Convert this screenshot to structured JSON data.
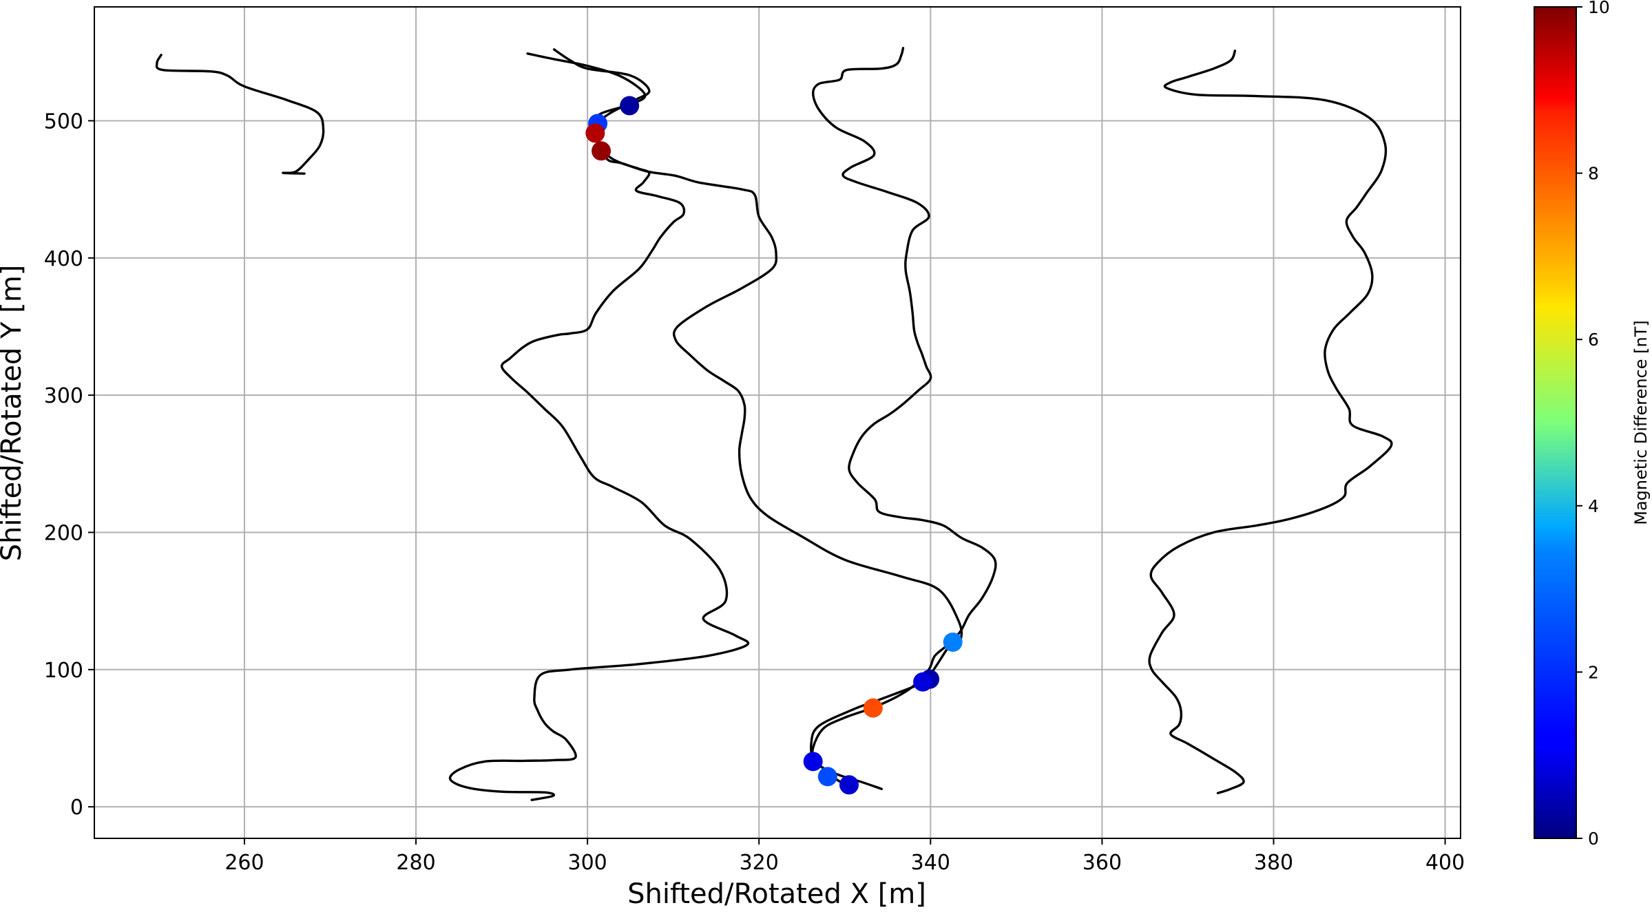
{
  "chart_data": {
    "type": "scatter",
    "title": "",
    "xlabel": "Shifted/Rotated X [m]",
    "ylabel": "Shifted/Rotated Y [m]",
    "xlim": [
      242.5,
      401.8
    ],
    "ylim": [
      -23,
      583
    ],
    "grid": true,
    "x_ticks": [
      260,
      280,
      300,
      320,
      340,
      360,
      380,
      400
    ],
    "y_ticks": [
      0,
      100,
      200,
      300,
      400,
      500
    ],
    "colorbar": {
      "label": "Magnetic Difference [nT]",
      "colormap": "jet",
      "min": 0,
      "max": 10,
      "ticks": [
        0,
        2,
        4,
        6,
        8,
        10
      ]
    },
    "tracks": [
      [
        [
          250.3,
          548
        ],
        [
          249.8,
          542
        ],
        [
          250.5,
          537
        ],
        [
          256,
          536
        ],
        [
          258,
          533
        ],
        [
          260,
          525
        ],
        [
          265,
          515
        ],
        [
          268.5,
          506
        ],
        [
          269.2,
          494
        ],
        [
          268.8,
          482
        ],
        [
          267.5,
          472
        ],
        [
          266,
          463
        ],
        [
          264.5,
          462
        ],
        [
          267,
          461.5
        ]
      ],
      [
        [
          296.1,
          552
        ],
        [
          298,
          544
        ],
        [
          300,
          538
        ],
        [
          305,
          533
        ],
        [
          307.2,
          522
        ],
        [
          305.5,
          515
        ],
        [
          302.5,
          505
        ],
        [
          301.2,
          498
        ],
        [
          300.9,
          492
        ],
        [
          301.2,
          484
        ],
        [
          301.8,
          477
        ],
        [
          302.5,
          471
        ],
        [
          304,
          469
        ],
        [
          307,
          463
        ],
        [
          310.2,
          460
        ],
        [
          313,
          455
        ],
        [
          318,
          450
        ],
        [
          319.5,
          446
        ],
        [
          320,
          430
        ],
        [
          321.5,
          415
        ],
        [
          322,
          403
        ],
        [
          321.5,
          392
        ],
        [
          318,
          378
        ],
        [
          314,
          365
        ],
        [
          310.5,
          350
        ],
        [
          310.3,
          340
        ],
        [
          312,
          329
        ],
        [
          314,
          318
        ],
        [
          316,
          310
        ],
        [
          317.6,
          303
        ],
        [
          318.3,
          293
        ],
        [
          318.3,
          283
        ],
        [
          318,
          272
        ],
        [
          317.7,
          259
        ],
        [
          318,
          242
        ],
        [
          319,
          225
        ],
        [
          321,
          212
        ],
        [
          325,
          197
        ],
        [
          330,
          180
        ],
        [
          336.5,
          168
        ],
        [
          341,
          158
        ],
        [
          343.3,
          135
        ],
        [
          343.5,
          122
        ],
        [
          342.3,
          118
        ],
        [
          340.8,
          104
        ],
        [
          339.7,
          94
        ],
        [
          339,
          90
        ],
        [
          334,
          78
        ],
        [
          331,
          71
        ],
        [
          327,
          59
        ],
        [
          326.1,
          47
        ],
        [
          326.5,
          33
        ],
        [
          329,
          24
        ],
        [
          332,
          18
        ],
        [
          334.3,
          13
        ]
      ],
      [
        [
          293,
          549
        ],
        [
          296,
          545
        ],
        [
          300,
          540
        ],
        [
          304,
          532
        ],
        [
          306.7,
          519
        ],
        [
          305,
          512
        ],
        [
          301.5,
          505
        ],
        [
          301,
          497
        ],
        [
          301.5,
          482
        ],
        [
          302.5,
          474
        ],
        [
          304,
          469
        ],
        [
          306,
          465
        ],
        [
          307.2,
          462
        ],
        [
          306.5,
          455
        ],
        [
          305.7,
          449
        ],
        [
          308.2,
          445
        ],
        [
          310.8,
          440
        ],
        [
          311.2,
          432
        ],
        [
          310,
          426
        ],
        [
          308.5,
          415
        ],
        [
          307.5,
          405
        ],
        [
          306,
          392
        ],
        [
          303,
          376
        ],
        [
          301,
          360
        ],
        [
          300,
          348
        ],
        [
          298,
          345
        ],
        [
          296.6,
          344
        ],
        [
          294,
          340
        ],
        [
          292.5,
          335
        ],
        [
          291,
          327
        ],
        [
          290,
          321
        ],
        [
          291.2,
          312
        ],
        [
          293,
          302
        ],
        [
          295,
          290
        ],
        [
          297.1,
          277
        ],
        [
          299.2,
          255
        ],
        [
          300.8,
          240
        ],
        [
          303,
          233
        ],
        [
          306.3,
          222
        ],
        [
          309,
          205
        ],
        [
          312,
          195
        ],
        [
          315.5,
          172
        ],
        [
          316.1,
          150
        ],
        [
          313.5,
          137
        ],
        [
          317.2,
          125
        ],
        [
          318.6,
          118
        ],
        [
          314,
          110
        ],
        [
          306,
          104
        ],
        [
          298,
          100
        ],
        [
          294.5,
          96
        ],
        [
          293.8,
          79
        ],
        [
          294.2,
          70
        ],
        [
          295,
          61
        ],
        [
          296,
          55
        ],
        [
          297.5,
          49
        ],
        [
          298.6,
          36
        ],
        [
          296,
          34
        ],
        [
          292.5,
          33.5
        ],
        [
          288,
          33
        ],
        [
          285,
          27
        ],
        [
          284,
          20
        ],
        [
          286,
          14
        ],
        [
          290,
          11
        ],
        [
          295,
          10.5
        ],
        [
          296,
          8
        ],
        [
          293.5,
          5
        ]
      ],
      [
        [
          336.8,
          553
        ],
        [
          336.6,
          548
        ],
        [
          336,
          541
        ],
        [
          334.2,
          538
        ],
        [
          330.2,
          537
        ],
        [
          329.4,
          530
        ],
        [
          327,
          527
        ],
        [
          326.3,
          520
        ],
        [
          327,
          508
        ],
        [
          329,
          495
        ],
        [
          332.3,
          485
        ],
        [
          333.4,
          475
        ],
        [
          330.7,
          466
        ],
        [
          329.8,
          460
        ],
        [
          331.5,
          455
        ],
        [
          335,
          448
        ],
        [
          338.5,
          440
        ],
        [
          339.8,
          430
        ],
        [
          337.9,
          420
        ],
        [
          337.2,
          403
        ],
        [
          337.1,
          391
        ],
        [
          337.6,
          375
        ],
        [
          337.9,
          360
        ],
        [
          338.1,
          347
        ],
        [
          338.5,
          338
        ],
        [
          339,
          330
        ],
        [
          339.5,
          321
        ],
        [
          340,
          312
        ],
        [
          338.5,
          303
        ],
        [
          336.5,
          292
        ],
        [
          335.2,
          286
        ],
        [
          333.4,
          279
        ],
        [
          332,
          270
        ],
        [
          331,
          258
        ],
        [
          330.5,
          246
        ],
        [
          331.5,
          236
        ],
        [
          333.5,
          224
        ],
        [
          334,
          215
        ],
        [
          336.5,
          211
        ],
        [
          339,
          209
        ],
        [
          341.5,
          205
        ],
        [
          343.6,
          196
        ],
        [
          346,
          189
        ],
        [
          347.5,
          180
        ],
        [
          347.3,
          168
        ],
        [
          346,
          152
        ],
        [
          344.5,
          140
        ],
        [
          343.5,
          128
        ],
        [
          342,
          118
        ],
        [
          340.5,
          110
        ],
        [
          339.8,
          100
        ],
        [
          338,
          88
        ],
        [
          336,
          80
        ],
        [
          333.2,
          72
        ],
        [
          330,
          65
        ],
        [
          327.5,
          57
        ],
        [
          326.3,
          43
        ],
        [
          326.5,
          33
        ],
        [
          328,
          26
        ],
        [
          329,
          20
        ],
        [
          330.5,
          15
        ]
      ],
      [
        [
          375.5,
          551
        ],
        [
          375,
          544
        ],
        [
          373,
          538
        ],
        [
          370,
          532
        ],
        [
          368,
          528
        ],
        [
          367.5,
          524
        ],
        [
          371,
          519
        ],
        [
          378,
          518
        ],
        [
          386,
          515
        ],
        [
          391.2,
          502
        ],
        [
          393,
          483
        ],
        [
          392.6,
          464
        ],
        [
          390.8,
          447
        ],
        [
          389.7,
          437
        ],
        [
          388.5,
          427
        ],
        [
          389.3,
          415
        ],
        [
          390.6,
          404
        ],
        [
          391.5,
          388
        ],
        [
          391,
          374
        ],
        [
          388.9,
          360
        ],
        [
          387,
          348
        ],
        [
          386,
          333
        ],
        [
          386.3,
          318
        ],
        [
          387.3,
          305
        ],
        [
          388.8,
          290
        ],
        [
          389.2,
          278
        ],
        [
          392.7,
          270
        ],
        [
          393.7,
          263
        ],
        [
          391.2,
          248
        ],
        [
          388.6,
          236
        ],
        [
          388.2,
          226
        ],
        [
          386,
          218
        ],
        [
          382,
          210
        ],
        [
          378,
          205
        ],
        [
          373,
          200
        ],
        [
          369,
          190
        ],
        [
          366.5,
          178
        ],
        [
          365.7,
          168
        ],
        [
          367,
          156
        ],
        [
          368.4,
          140
        ],
        [
          367,
          127
        ],
        [
          365.6,
          110
        ],
        [
          365.8,
          100
        ],
        [
          367,
          91
        ],
        [
          368.6,
          80
        ],
        [
          369.2,
          70
        ],
        [
          369,
          60
        ],
        [
          368,
          53
        ],
        [
          370,
          46
        ],
        [
          373,
          35
        ],
        [
          375.6,
          25
        ],
        [
          376.5,
          18
        ],
        [
          375,
          13
        ],
        [
          373.5,
          10
        ]
      ]
    ],
    "points": [
      {
        "x": 304.9,
        "y": 511,
        "value": 0.3
      },
      {
        "x": 301.2,
        "y": 498,
        "value": 1.8
      },
      {
        "x": 300.9,
        "y": 491,
        "value": 9.5
      },
      {
        "x": 301.6,
        "y": 478,
        "value": 9.8
      },
      {
        "x": 342.6,
        "y": 120,
        "value": 2.5
      },
      {
        "x": 339.9,
        "y": 93,
        "value": 0.4
      },
      {
        "x": 339.1,
        "y": 91,
        "value": 0.9
      },
      {
        "x": 333.3,
        "y": 72,
        "value": 8.0
      },
      {
        "x": 326.3,
        "y": 33,
        "value": 1.0
      },
      {
        "x": 328.0,
        "y": 22,
        "value": 2.0
      },
      {
        "x": 330.5,
        "y": 16,
        "value": 0.8
      }
    ]
  }
}
